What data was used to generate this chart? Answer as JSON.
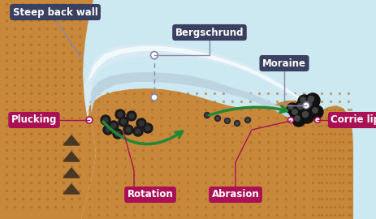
{
  "bg_color": "#cce8f0",
  "rock_color": "#c8883c",
  "rock_dot": "#a86820",
  "ice_top": "#e8f4f8",
  "ice_body": "#c8dce8",
  "ice_bottom": "#b0ccd8",
  "dark_label_bg": "#3a4060",
  "pink_label_bg": "#aa1155",
  "moraine_color": "#222222",
  "arrow_green": "#228833",
  "line_gray": "#8888aa",
  "pluck_arrow": "#554433",
  "labels": {
    "steep_back_wall": "Steep back wall",
    "bergschrund": "Bergschrund",
    "moraine": "Moraine",
    "plucking": "Plucking",
    "rotation": "Rotation",
    "abrasion": "Abrasion",
    "corrie_lip": "Corrie lip"
  }
}
